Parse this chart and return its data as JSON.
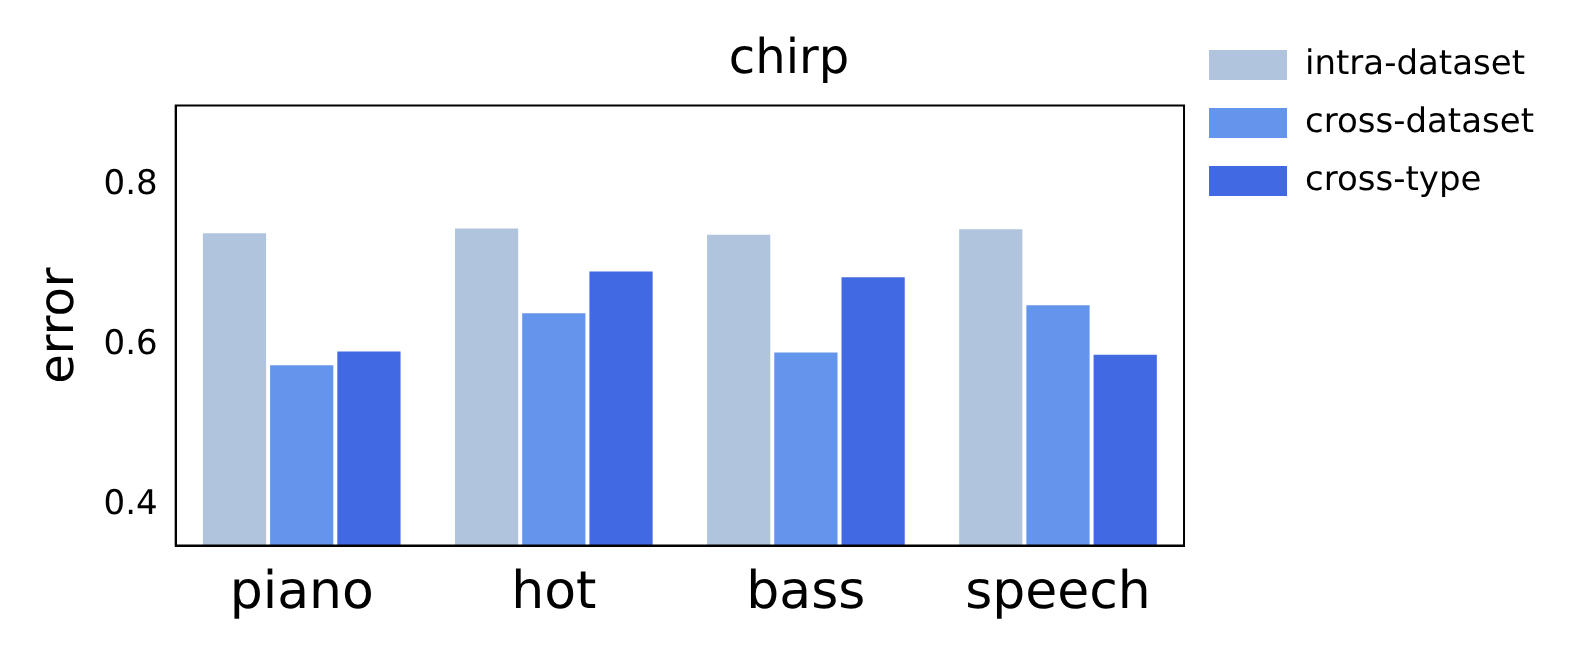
{
  "chart_data": {
    "type": "bar",
    "title": "chirp",
    "ylabel": "error",
    "categories": [
      "piano",
      "hot",
      "bass",
      "speech"
    ],
    "series": [
      {
        "name": "intra-dataset",
        "color": "#b0c4de",
        "values": [
          0.743,
          0.749,
          0.741,
          0.748
        ]
      },
      {
        "name": "cross-dataset",
        "color": "#6495ed",
        "values": [
          0.578,
          0.643,
          0.594,
          0.653
        ]
      },
      {
        "name": "cross-type",
        "color": "#4169e1",
        "values": [
          0.595,
          0.695,
          0.688,
          0.591
        ]
      }
    ],
    "ylim": [
      0.35,
      0.9
    ],
    "yticks": [
      0.4,
      0.6,
      0.8
    ],
    "grid": false,
    "legend": "right"
  }
}
